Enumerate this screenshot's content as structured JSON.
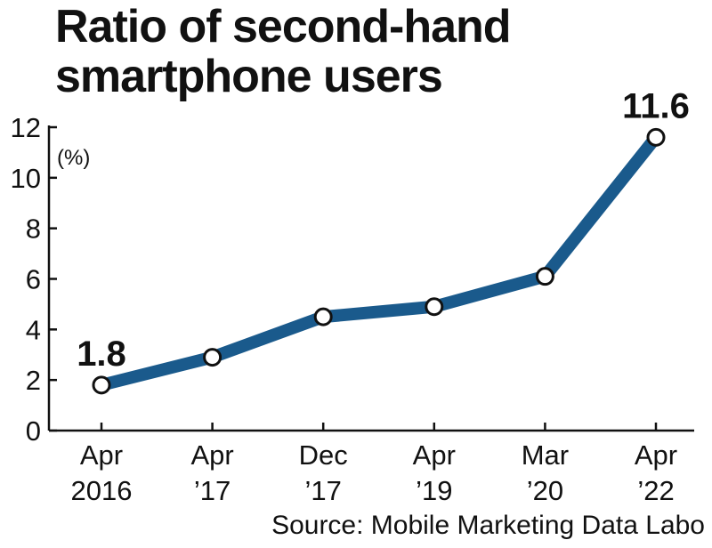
{
  "chart_data": {
    "type": "line",
    "title_lines": [
      "Ratio of second-hand",
      "smartphone users"
    ],
    "unit_label": "(%)",
    "categories": [
      [
        "Apr",
        "2016"
      ],
      [
        "Apr",
        "’17"
      ],
      [
        "Dec",
        "’17"
      ],
      [
        "Apr",
        "’19"
      ],
      [
        "Mar",
        "’20"
      ],
      [
        "Apr",
        "’22"
      ]
    ],
    "values": [
      1.8,
      2.9,
      4.5,
      4.9,
      6.1,
      11.6
    ],
    "data_labels": [
      {
        "index": 0,
        "text": "1.8"
      },
      {
        "index": 5,
        "text": "11.6"
      }
    ],
    "ylim": [
      0,
      12
    ],
    "y_ticks": [
      0,
      2,
      4,
      6,
      8,
      10,
      12
    ],
    "grid": false,
    "line_color": "#1a5a8c",
    "marker_fill": "#ffffff",
    "marker_stroke": "#111111"
  },
  "source": "Source: Mobile Marketing Data Labo"
}
